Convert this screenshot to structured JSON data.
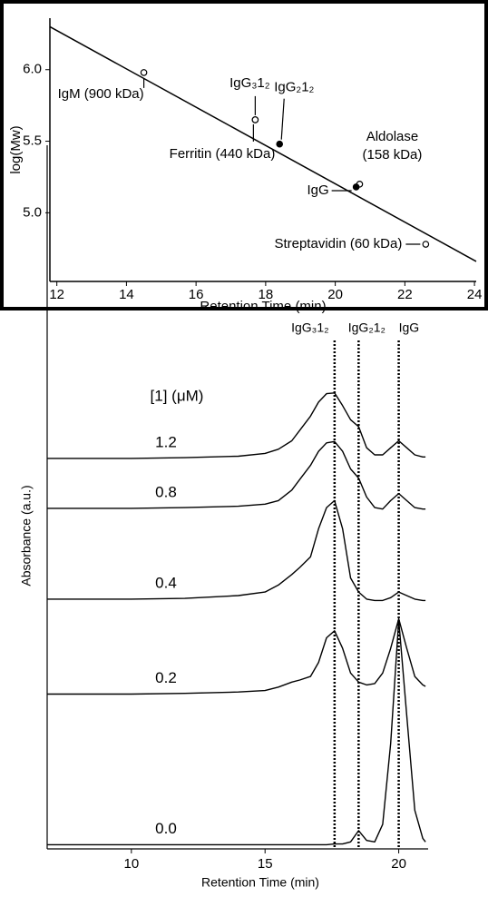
{
  "chart_data": [
    {
      "type": "scatter",
      "x_label": "Retention Time (min)",
      "y_label": "log(Mw)",
      "xlim": [
        11.8,
        24.05
      ],
      "ylim": [
        4.52,
        6.36
      ],
      "xticks": [
        12,
        14,
        16,
        18,
        20,
        22,
        24
      ],
      "yticks": [
        {
          "value": 5.0,
          "label": "5.0"
        },
        {
          "value": 5.5,
          "label": "5.5"
        },
        {
          "value": 6.0,
          "label": "6.0"
        }
      ],
      "x": [
        14.5,
        17.7,
        18.4,
        17.7,
        20.7,
        20.6,
        22.6
      ],
      "values": [
        5.98,
        5.65,
        5.48,
        5.65,
        5.2,
        5.18,
        4.78
      ],
      "filled": [
        false,
        true,
        true,
        false,
        false,
        true,
        false
      ],
      "labels": [
        "IgM (900 kDa)",
        "IgG₃1₂",
        "IgG₂1₂",
        "Ferritin (440 kDa)",
        [
          "Aldolase",
          "(158 kDa)"
        ],
        "IgG",
        "Streptavidin (60 kDa)"
      ],
      "fit": {
        "x": [
          11.8,
          24.05
        ],
        "values": [
          6.3,
          4.66
        ]
      },
      "color": "#000000"
    },
    {
      "type": "line",
      "x_label": "Retention Time (min)",
      "y_label": "Absorbance (a.u.)",
      "legend_title": "[1] (μM)",
      "xlim": [
        6.85,
        21.1
      ],
      "ylim": [
        0,
        10
      ],
      "xticks": [
        10,
        15,
        20
      ],
      "x": [
        6.85,
        8,
        10,
        12,
        14,
        15,
        15.5,
        16,
        16.3,
        16.7,
        17.0,
        17.3,
        17.6,
        17.9,
        18.2,
        18.5,
        18.8,
        19.1,
        19.4,
        19.7,
        20.0,
        20.3,
        20.6,
        20.9,
        21.0
      ],
      "series": [
        {
          "name": "1.2",
          "color": "#000000",
          "values": [
            5.55,
            5.55,
            5.55,
            5.56,
            5.58,
            5.62,
            5.68,
            5.8,
            5.95,
            6.15,
            6.35,
            6.47,
            6.48,
            6.3,
            6.1,
            6.0,
            5.7,
            5.6,
            5.6,
            5.7,
            5.8,
            5.7,
            5.6,
            5.57,
            5.57
          ]
        },
        {
          "name": "0.8",
          "color": "#000000",
          "values": [
            4.84,
            4.84,
            4.84,
            4.85,
            4.87,
            4.9,
            4.95,
            5.1,
            5.25,
            5.45,
            5.65,
            5.77,
            5.79,
            5.65,
            5.4,
            5.27,
            5.0,
            4.85,
            4.83,
            4.95,
            5.05,
            4.95,
            4.85,
            4.83,
            4.83
          ]
        },
        {
          "name": "0.4",
          "color": "#000000",
          "values": [
            3.55,
            3.55,
            3.55,
            3.56,
            3.6,
            3.65,
            3.75,
            3.9,
            4.0,
            4.15,
            4.55,
            4.85,
            4.95,
            4.55,
            3.85,
            3.65,
            3.55,
            3.53,
            3.53,
            3.57,
            3.65,
            3.6,
            3.55,
            3.53,
            3.53
          ]
        },
        {
          "name": "0.2",
          "color": "#000000",
          "values": [
            2.2,
            2.2,
            2.2,
            2.21,
            2.23,
            2.25,
            2.3,
            2.37,
            2.4,
            2.45,
            2.65,
            3.0,
            3.1,
            2.85,
            2.5,
            2.37,
            2.33,
            2.35,
            2.5,
            2.85,
            3.27,
            2.85,
            2.45,
            2.33,
            2.31
          ]
        },
        {
          "name": "0.0",
          "color": "#000000",
          "values": [
            0.06,
            0.06,
            0.06,
            0.06,
            0.06,
            0.06,
            0.06,
            0.06,
            0.06,
            0.06,
            0.06,
            0.06,
            0.07,
            0.07,
            0.1,
            0.26,
            0.12,
            0.1,
            0.35,
            1.5,
            3.25,
            1.9,
            0.55,
            0.15,
            0.1
          ]
        }
      ],
      "markers": [
        {
          "x": 17.6,
          "label": "IgG₃1₂"
        },
        {
          "x": 18.5,
          "label": "IgG₂1₂"
        },
        {
          "x": 20.0,
          "label": "IgG"
        }
      ]
    }
  ]
}
